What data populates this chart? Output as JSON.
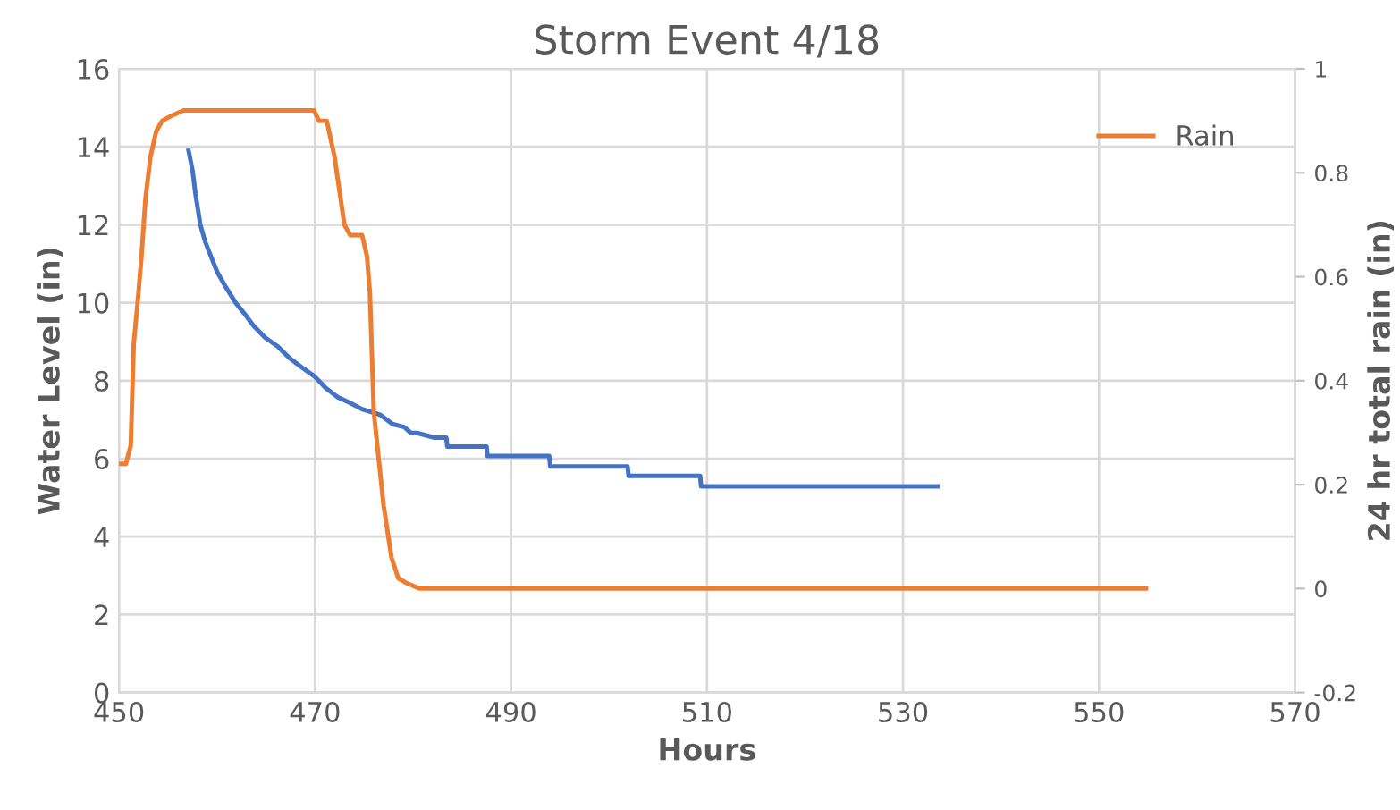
{
  "chart_data": {
    "type": "line",
    "title": "Storm Event 4/18",
    "xlabel": "Hours",
    "ylabel": "Water Level (in)",
    "y2label": "24 hr total rain (in)",
    "xlim": [
      450,
      570
    ],
    "xticks": [
      450,
      470,
      490,
      510,
      530,
      550,
      570
    ],
    "ylim": [
      0,
      16
    ],
    "yticks": [
      0,
      2,
      4,
      6,
      8,
      10,
      12,
      14,
      16
    ],
    "y2lim": [
      -0.2,
      1
    ],
    "y2ticks": [
      -0.2,
      0,
      0.2,
      0.4,
      0.6,
      0.8,
      1
    ],
    "grid": true,
    "legend": "top right",
    "marker": "none",
    "line_style": "solid",
    "series": [
      {
        "color": "#4472c4",
        "x": [
          457.1,
          457.5,
          457.8,
          458.3,
          458.8,
          459.4,
          460.0,
          460.9,
          461.9,
          462.8,
          463.7,
          464.9,
          466.2,
          467.4,
          468.6,
          469.9,
          471.1,
          472.3,
          473.6,
          474.8,
          476.7,
          477.9,
          479.1,
          479.8,
          480.4,
          482.2,
          483.4,
          483.5,
          487.5,
          487.6,
          493.9,
          494.0,
          501.9,
          502.0,
          509.3,
          509.4,
          533.5
        ],
        "values": [
          13.9,
          13.4,
          12.8,
          12.0,
          11.56,
          11.18,
          10.8,
          10.4,
          10.0,
          9.72,
          9.42,
          9.11,
          8.88,
          8.58,
          8.35,
          8.12,
          7.81,
          7.58,
          7.43,
          7.27,
          7.12,
          6.89,
          6.81,
          6.66,
          6.66,
          6.54,
          6.54,
          6.31,
          6.31,
          6.07,
          6.07,
          5.8,
          5.8,
          5.56,
          5.56,
          5.29,
          5.29
        ]
      },
      {
        "name": "Rain",
        "color": "#ed7d31",
        "axis": "y2",
        "x": [
          450,
          450.7,
          451.2,
          451.5,
          451.9,
          452.3,
          452.7,
          453.2,
          453.8,
          454.4,
          455.4,
          456.6,
          469.9,
          470.4,
          471.2,
          472.0,
          473.0,
          473.6,
          474.8,
          475.3,
          475.6,
          476.0,
          477.0,
          477.8,
          478.5,
          479.4,
          480.7,
          554.8
        ],
        "values": [
          0.24,
          0.24,
          0.275,
          0.47,
          0.55,
          0.64,
          0.75,
          0.83,
          0.88,
          0.9,
          0.91,
          0.92,
          0.92,
          0.9,
          0.9,
          0.83,
          0.7,
          0.68,
          0.68,
          0.64,
          0.57,
          0.34,
          0.16,
          0.06,
          0.02,
          0.01,
          0,
          0
        ]
      }
    ]
  }
}
